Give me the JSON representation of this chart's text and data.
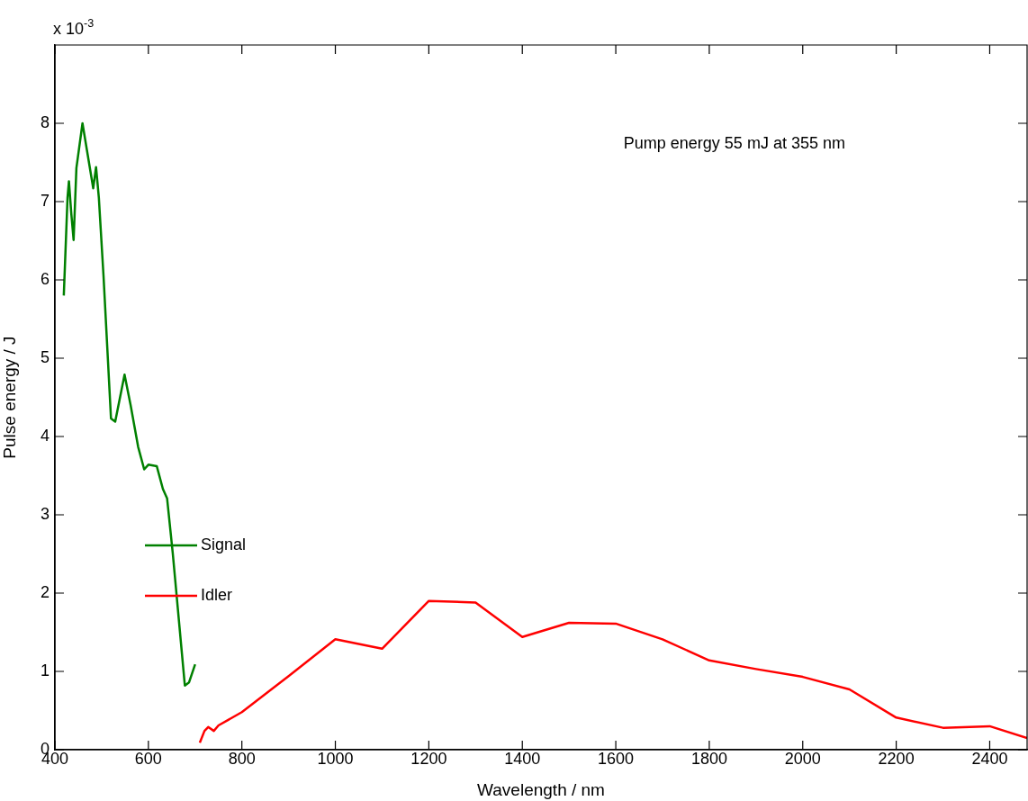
{
  "chart_data": {
    "type": "line",
    "xlabel": "Wavelength / nm",
    "ylabel": "Pulse energy / J",
    "annotations": [
      "x 10$^{-3}$",
      "Pump energy 55 mJ at 355 nm"
    ],
    "xlim": [
      400,
      2480
    ],
    "xticks": [
      400,
      600,
      800,
      1000,
      1200,
      1400,
      1600,
      1800,
      2000,
      2200,
      2400
    ],
    "ylim": [
      0,
      9
    ],
    "yticks": [
      0,
      1,
      2,
      3,
      4,
      5,
      6,
      7,
      8
    ],
    "grid": false,
    "legend": "left",
    "marker": "none",
    "line_style": "solid",
    "series": [
      {
        "name": "Signal",
        "color": "#008000",
        "x": [
          419,
          427,
          430,
          435,
          440,
          446,
          459,
          482,
          488,
          494,
          504,
          520,
          529,
          549,
          562,
          578,
          591,
          600,
          618,
          631,
          640,
          652,
          678,
          687,
          700
        ],
        "values": [
          5.8,
          7.05,
          7.26,
          6.85,
          6.51,
          7.43,
          8.0,
          7.17,
          7.44,
          7.05,
          6.05,
          4.23,
          4.19,
          4.79,
          4.4,
          3.87,
          3.58,
          3.64,
          3.62,
          3.33,
          3.21,
          2.52,
          0.82,
          0.86,
          1.09
        ]
      },
      {
        "name": "Idler",
        "color": "#ff0000",
        "x": [
          710,
          720,
          728,
          740,
          750,
          800,
          900,
          1000,
          1100,
          1200,
          1300,
          1400,
          1500,
          1600,
          1700,
          1800,
          1900,
          2000,
          2100,
          2200,
          2300,
          2400,
          2480
        ],
        "values": [
          0.09,
          0.24,
          0.29,
          0.24,
          0.31,
          0.48,
          0.94,
          1.41,
          1.29,
          1.9,
          1.88,
          1.44,
          1.62,
          1.61,
          1.41,
          1.14,
          1.03,
          0.93,
          0.77,
          0.41,
          0.28,
          0.3,
          0.15
        ]
      }
    ]
  }
}
